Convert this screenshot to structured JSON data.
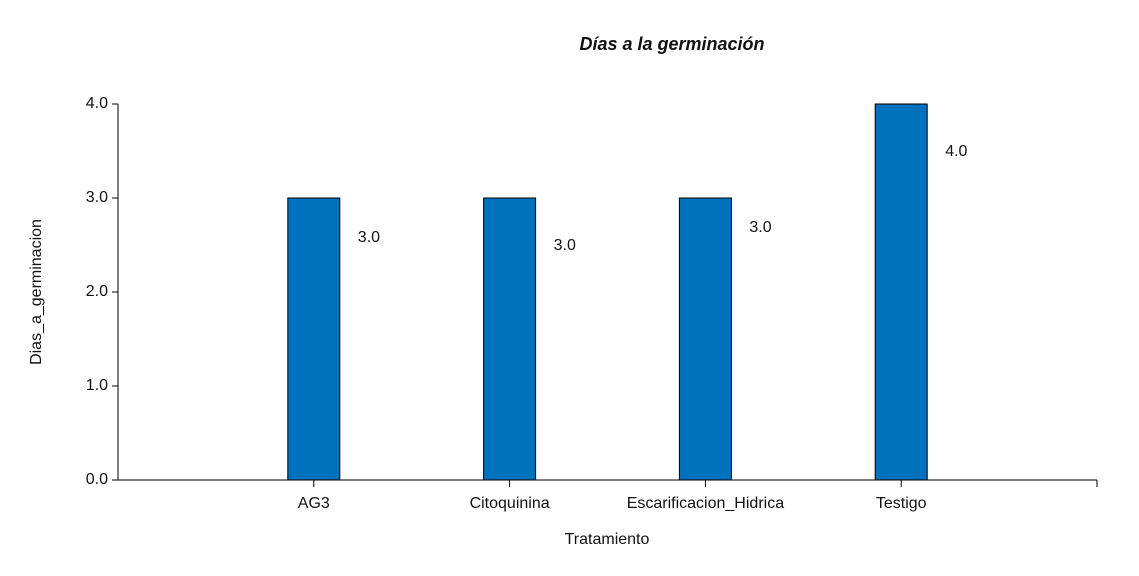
{
  "chart_data": {
    "type": "bar",
    "title": "Días a la germinación",
    "x_label": "Tratamiento",
    "y_label": "Dias_a_germinacion",
    "categories": [
      "AG3",
      "Citoquinina",
      "Escarificacion_Hidrica",
      "Testigo"
    ],
    "values": [
      3,
      3,
      3,
      4
    ],
    "value_labels": [
      "3.0",
      "3.0",
      "3.0",
      "4.0"
    ],
    "color": "#0071bc",
    "ylim": [
      0,
      4
    ],
    "yticks": [
      {
        "value": 0,
        "label": "0.0"
      },
      {
        "value": 1,
        "label": "1.0"
      },
      {
        "value": 2,
        "label": "2.0"
      },
      {
        "value": 3,
        "label": "3.0"
      },
      {
        "value": 4,
        "label": "4.0"
      }
    ],
    "grid": false
  }
}
